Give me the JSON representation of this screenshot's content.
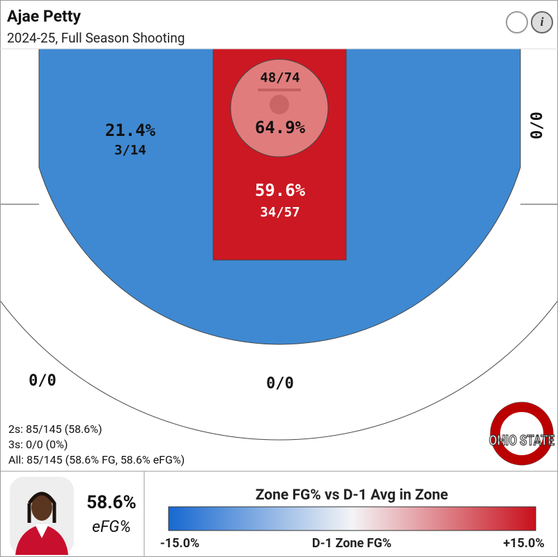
{
  "header": {
    "title": "Ajae Petty",
    "subtitle": "2024-25, Full Season Shooting"
  },
  "zones": {
    "rim": {
      "pct": "64.9%",
      "shots": "48/74"
    },
    "paint": {
      "pct": "59.6%",
      "shots": "34/57"
    },
    "mid_range": {
      "pct": "21.4%",
      "shots": "3/14"
    },
    "right_corner_three": {
      "shots": "0/0"
    },
    "left_wing_three": {
      "shots": "0/0"
    },
    "top_three": {
      "shots": "0/0"
    }
  },
  "summary": [
    "2s: 85/145 (58.6%)",
    "3s: 0/0 (0%)",
    "All: 85/145 (58.6% FG, 58.6% eFG%)"
  ],
  "logo_text": "OHIO STATE",
  "player": {
    "efg_value": "58.6%",
    "efg_label": "eFG%"
  },
  "legend": {
    "title": "Zone FG% vs D-1 Avg in Zone",
    "min_label": "-15.0%",
    "mid_label": "D-1 Zone FG%",
    "max_label": "+15.0%"
  }
}
